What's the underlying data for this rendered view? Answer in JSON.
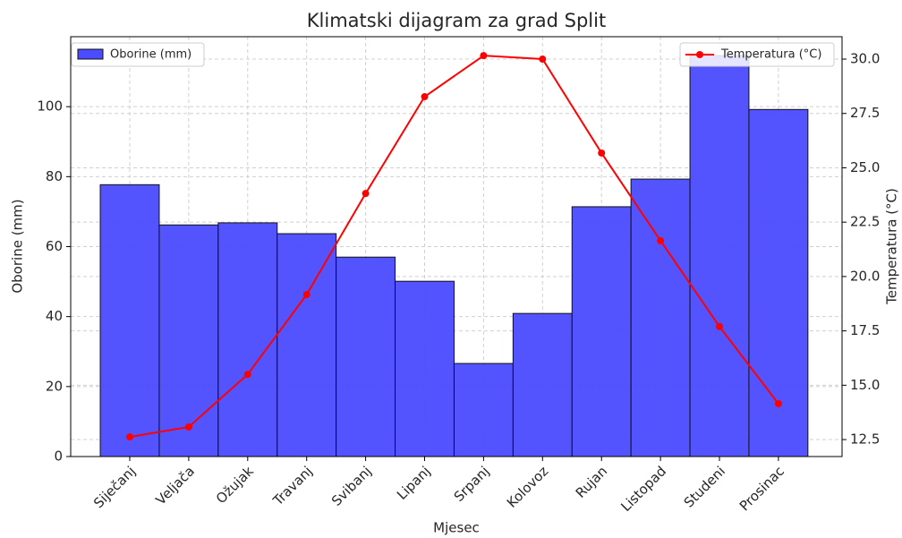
{
  "chart_data": {
    "type": "bar",
    "title": "Klimatski dijagram za grad Split",
    "xlabel": "Mjesec",
    "ylabel": "Oborine (mm)",
    "y2label": "Temperatura (°C)",
    "categories": [
      "Siječanj",
      "Veljača",
      "Ožujak",
      "Travanj",
      "Svibanj",
      "Lipanj",
      "Srpanj",
      "Kolovoz",
      "Rujan",
      "Listopad",
      "Studeni",
      "Prosinac"
    ],
    "series": [
      {
        "name": "Oborine (mm)",
        "type": "bar",
        "color": "#4b4bff",
        "legend": "upper left",
        "values": [
          77.7,
          66.2,
          66.8,
          63.7,
          57.0,
          50.1,
          26.6,
          40.9,
          71.4,
          79.3,
          114.6,
          99.2
        ]
      },
      {
        "name": "Temperatura (°C)",
        "type": "line",
        "axis": "y2",
        "color": "#ff0000",
        "legend": "upper right",
        "values": [
          12.62,
          13.08,
          15.5,
          19.17,
          23.82,
          28.27,
          30.16,
          30.0,
          25.68,
          21.65,
          17.7,
          14.15
        ]
      }
    ],
    "ylim": [
      0,
      120
    ],
    "yticks": [
      0,
      20,
      40,
      60,
      80,
      100
    ],
    "y2lim": [
      11.72,
      31.03
    ],
    "y2ticks": [
      12.5,
      {
        "value": 15,
        "label": "15.0"
      },
      17.5,
      {
        "value": 20,
        "label": "20.0"
      },
      22.5,
      {
        "value": 25,
        "label": "25.0"
      },
      27.5,
      {
        "value": 30,
        "label": "30.0"
      }
    ],
    "grid": true
  }
}
